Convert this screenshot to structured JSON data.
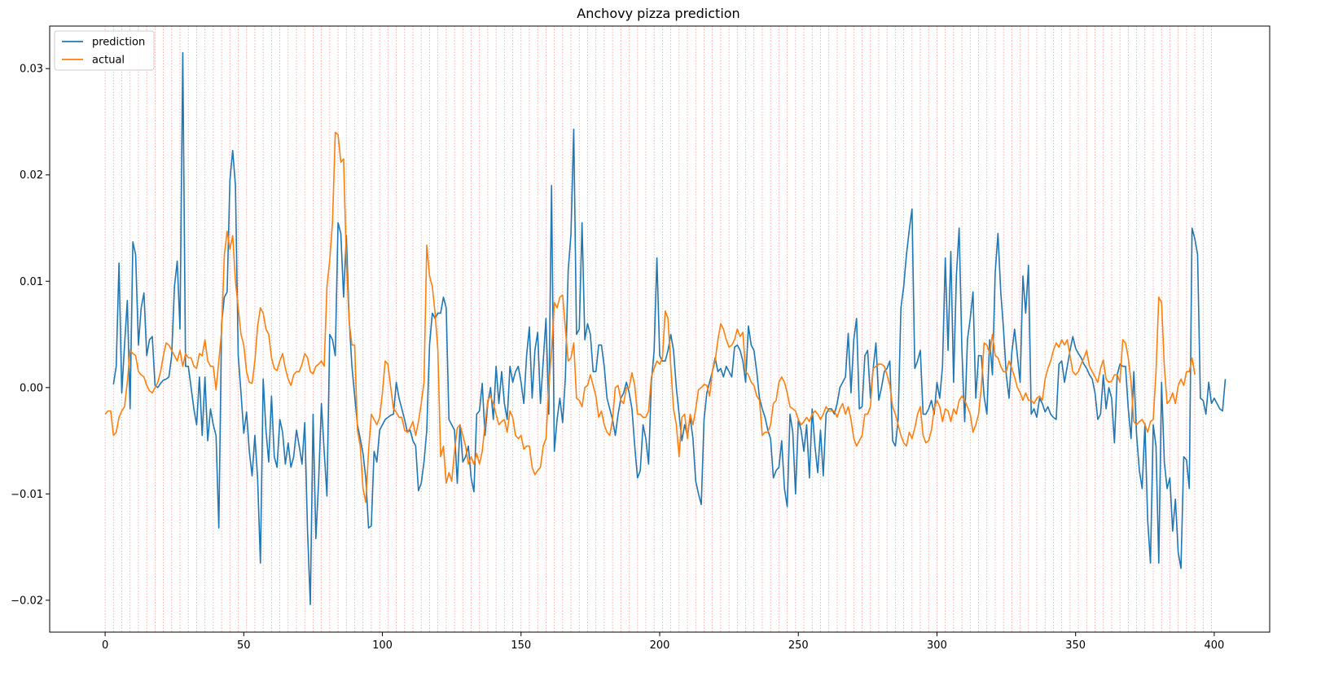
{
  "chart_data": {
    "type": "line",
    "title": "Anchovy pizza prediction",
    "xlabel": "",
    "ylabel": "",
    "xlim": [
      -20,
      420
    ],
    "ylim": [
      -0.023,
      0.034
    ],
    "x_ticks": [
      0,
      50,
      100,
      150,
      200,
      250,
      300,
      350,
      400
    ],
    "y_ticks": [
      -0.02,
      -0.01,
      0.0,
      0.01,
      0.02,
      0.03
    ],
    "y_tick_labels": [
      "−0.02",
      "−0.01",
      "0.00",
      "0.01",
      "0.02",
      "0.03"
    ],
    "grid": false,
    "legend_position": "upper-left",
    "vertical_markers": {
      "start": 0,
      "end": 399,
      "step": 3,
      "color": "#ff9999",
      "style": "dotted"
    },
    "series": [
      {
        "name": "prediction",
        "color": "#1f77b4",
        "x_start": 3,
        "step": 1,
        "values": [
          0.0003,
          0.002,
          0.0117,
          -0.0005,
          0.004,
          0.0082,
          -0.002,
          0.0137,
          0.0125,
          0.004,
          0.0075,
          0.0089,
          0.003,
          0.0045,
          0.0048,
          0.0002,
          0.0,
          0.0004,
          0.0007,
          0.0008,
          0.001,
          0.003,
          0.0095,
          0.0119,
          0.0055,
          0.0315,
          0.002,
          0.002,
          0.0,
          -0.002,
          -0.0035,
          0.001,
          -0.0045,
          0.001,
          -0.005,
          -0.002,
          -0.0035,
          -0.0045,
          -0.0132,
          0.006,
          0.0085,
          0.009,
          0.0195,
          0.0223,
          0.019,
          0.003,
          -0.0005,
          -0.0043,
          -0.0023,
          -0.006,
          -0.0083,
          -0.0045,
          -0.0086,
          -0.0165,
          0.0008,
          -0.004,
          -0.007,
          -0.0008,
          -0.0065,
          -0.0075,
          -0.003,
          -0.0042,
          -0.0072,
          -0.0052,
          -0.0075,
          -0.0065,
          -0.004,
          -0.0055,
          -0.0072,
          -0.0033,
          -0.0135,
          -0.0204,
          -0.0025,
          -0.0142,
          -0.0088,
          -0.0015,
          -0.006,
          -0.0102,
          0.005,
          0.0045,
          0.003,
          0.0155,
          0.0145,
          0.0085,
          0.0143,
          0.0065,
          0.002,
          -0.0008,
          -0.0035,
          -0.0048,
          -0.0062,
          -0.0085,
          -0.0132,
          -0.013,
          -0.006,
          -0.007,
          -0.004,
          -0.0035,
          -0.003,
          -0.0028,
          -0.0026,
          -0.0025,
          0.0005,
          -0.001,
          -0.002,
          -0.003,
          -0.0042,
          -0.004,
          -0.005,
          -0.0055,
          -0.0097,
          -0.009,
          -0.007,
          -0.004,
          0.004,
          0.007,
          0.0065,
          0.007,
          0.007,
          0.0085,
          0.0075,
          -0.003,
          -0.0035,
          -0.004,
          -0.009,
          -0.0035,
          -0.007,
          -0.0065,
          -0.0055,
          -0.0085,
          -0.0098,
          -0.0025,
          -0.0022,
          0.0004,
          -0.0045,
          -0.0015,
          0.0,
          -0.003,
          0.002,
          -0.0015,
          0.0015,
          -0.0015,
          -0.003,
          0.002,
          0.0005,
          0.0015,
          0.002,
          0.0005,
          -0.0015,
          0.003,
          0.0057,
          -0.001,
          0.0035,
          0.0052,
          -0.0015,
          0.0025,
          0.0065,
          -0.0025,
          0.019,
          -0.006,
          -0.003,
          -0.001,
          -0.0033,
          0.001,
          0.011,
          0.0144,
          0.0243,
          0.005,
          0.0055,
          0.0155,
          0.0045,
          0.006,
          0.005,
          0.0015,
          0.0015,
          0.004,
          0.004,
          0.002,
          -0.001,
          -0.002,
          -0.003,
          -0.0045,
          -0.0025,
          -0.001,
          -0.0005,
          0.0005,
          -0.0005,
          -0.002,
          -0.0055,
          -0.0085,
          -0.0078,
          -0.0035,
          -0.0048,
          -0.0072,
          0.0005,
          0.0035,
          0.0122,
          0.003,
          0.0025,
          0.0025,
          0.0035,
          0.005,
          0.0035,
          0.0,
          -0.0025,
          -0.005,
          -0.0035,
          -0.0045,
          -0.0028,
          -0.0048,
          -0.0088,
          -0.01,
          -0.011,
          -0.003,
          -0.0005,
          0.0005,
          0.0015,
          0.0028,
          0.0015,
          0.0018,
          0.001,
          0.002,
          0.0015,
          0.001,
          0.0038,
          0.004,
          0.0035,
          0.0025,
          0.0005,
          0.0058,
          0.004,
          0.0035,
          0.0015,
          -0.001,
          -0.002,
          -0.0028,
          -0.004,
          -0.0048,
          -0.0085,
          -0.0078,
          -0.0075,
          -0.005,
          -0.0095,
          -0.0112,
          -0.0025,
          -0.0042,
          -0.01,
          -0.003,
          -0.004,
          -0.006,
          -0.0035,
          -0.0085,
          -0.002,
          -0.0055,
          -0.008,
          -0.004,
          -0.0083,
          -0.0025,
          -0.002,
          -0.002,
          -0.0025,
          -0.0015,
          0.0,
          0.0005,
          0.001,
          0.0051,
          -0.0005,
          0.0045,
          0.0065,
          -0.002,
          -0.0018,
          0.003,
          0.0035,
          -0.001,
          0.0018,
          0.0042,
          -0.0012,
          0.0,
          0.0015,
          0.0018,
          0.0025,
          -0.005,
          -0.0055,
          -0.003,
          0.0075,
          0.0095,
          0.0125,
          0.0148,
          0.0168,
          0.0018,
          0.0025,
          0.0035,
          -0.0025,
          -0.0025,
          -0.002,
          -0.0012,
          -0.0025,
          0.0005,
          -0.001,
          0.002,
          0.0122,
          0.0035,
          0.0128,
          0.0005,
          0.0105,
          0.015,
          0.0035,
          -0.0032,
          0.0045,
          0.0065,
          0.009,
          -0.001,
          0.003,
          0.003,
          -0.0008,
          -0.0025,
          0.0045,
          0.0012,
          0.0108,
          0.0145,
          0.009,
          0.0055,
          0.0012,
          -0.001,
          0.0033,
          0.0055,
          0.003,
          0.0005,
          0.0105,
          0.007,
          0.0115,
          -0.0025,
          -0.002,
          -0.0028,
          -0.001,
          -0.0015,
          -0.0023,
          -0.0018,
          -0.0025,
          -0.0028,
          -0.003,
          0.0022,
          0.0025,
          0.0005,
          0.002,
          0.0035,
          0.0048,
          0.0037,
          0.0032,
          0.0028,
          0.0022,
          0.0018,
          0.0012,
          0.0008,
          -0.0005,
          -0.003,
          -0.0025,
          0.0012,
          -0.002,
          0.0,
          -0.001,
          -0.0052,
          0.0012,
          0.0022,
          0.002,
          0.002,
          -0.002,
          -0.0048,
          0.0015,
          -0.0045,
          -0.0078,
          -0.0095,
          -0.0034,
          -0.0125,
          -0.0165,
          -0.0035,
          -0.0055,
          -0.0165,
          0.0005,
          -0.007,
          -0.0095,
          -0.0085,
          -0.0135,
          -0.0105,
          -0.0155,
          -0.017,
          -0.0065,
          -0.0068,
          -0.0095,
          0.015,
          0.014,
          0.0125,
          -0.001,
          -0.0012,
          -0.0025,
          0.0005,
          -0.0015,
          -0.001,
          -0.0015,
          -0.002,
          -0.0022,
          0.0008
        ]
      },
      {
        "name": "actual",
        "color": "#ff7f0e",
        "x_start": 0,
        "step": 1,
        "values": [
          -0.0025,
          -0.0022,
          -0.0022,
          -0.0045,
          -0.0042,
          -0.0028,
          -0.0022,
          -0.0018,
          0.0005,
          0.0035,
          0.0032,
          0.003,
          0.0015,
          0.0012,
          0.001,
          0.0002,
          -0.0003,
          -0.0005,
          0.0,
          0.0005,
          0.0015,
          0.003,
          0.0042,
          0.004,
          0.0035,
          0.003,
          0.0025,
          0.0035,
          0.002,
          0.0032,
          0.0028,
          0.0028,
          0.002,
          0.0018,
          0.0032,
          0.003,
          0.0045,
          0.0025,
          0.002,
          0.002,
          -0.0002,
          0.0025,
          0.0053,
          0.0125,
          0.0147,
          0.013,
          0.0143,
          0.01,
          0.0075,
          0.005,
          0.004,
          0.0015,
          0.0005,
          0.0004,
          0.0025,
          0.0058,
          0.0075,
          0.007,
          0.0055,
          0.005,
          0.0028,
          0.0018,
          0.0016,
          0.0025,
          0.0032,
          0.0018,
          0.0008,
          0.0002,
          0.0012,
          0.0015,
          0.0015,
          0.0022,
          0.0032,
          0.0028,
          0.0015,
          0.0013,
          0.002,
          0.0022,
          0.0025,
          0.002,
          0.0095,
          0.012,
          0.0155,
          0.024,
          0.0238,
          0.0212,
          0.0215,
          0.012,
          0.0062,
          0.004,
          0.004,
          -0.004,
          -0.0055,
          -0.0095,
          -0.0108,
          -0.006,
          -0.0025,
          -0.003,
          -0.0035,
          -0.0028,
          -0.0005,
          0.0025,
          0.0022,
          0.0,
          -0.002,
          -0.0023,
          -0.0028,
          -0.0028,
          -0.004,
          -0.0042,
          -0.0038,
          -0.0032,
          -0.0045,
          -0.0032,
          -0.0015,
          0.0005,
          0.0134,
          0.0105,
          0.0095,
          0.007,
          0.0035,
          -0.0065,
          -0.0055,
          -0.009,
          -0.008,
          -0.0088,
          -0.006,
          -0.0038,
          -0.0035,
          -0.0045,
          -0.0055,
          -0.0072,
          -0.0065,
          -0.0072,
          -0.0062,
          -0.0072,
          -0.006,
          -0.0035,
          -0.0012,
          -0.0008,
          -0.0015,
          -0.0025,
          -0.0035,
          -0.0032,
          -0.003,
          -0.0042,
          -0.0022,
          -0.0028,
          -0.0045,
          -0.0048,
          -0.0045,
          -0.0058,
          -0.0055,
          -0.0055,
          -0.0075,
          -0.0082,
          -0.0078,
          -0.0075,
          -0.0055,
          -0.0048,
          0.0,
          0.0035,
          0.008,
          0.0075,
          0.0085,
          0.0087,
          0.0055,
          0.0025,
          0.0028,
          0.0042,
          -0.001,
          -0.0012,
          -0.0018,
          0.0,
          0.0002,
          0.0012,
          0.0002,
          -0.0008,
          -0.0028,
          -0.0022,
          -0.0035,
          -0.0042,
          -0.0045,
          -0.003,
          0.0,
          0.0002,
          -0.0012,
          -0.0015,
          0.0,
          0.0,
          0.0014,
          0.0002,
          -0.0025,
          -0.0025,
          -0.0028,
          -0.0028,
          -0.0022,
          0.001,
          0.0018,
          0.0025,
          0.0022,
          0.0028,
          0.0072,
          0.0065,
          0.002,
          -0.002,
          -0.0035,
          -0.0065,
          -0.0028,
          -0.0025,
          -0.0048,
          -0.0025,
          -0.0035,
          -0.002,
          -0.0002,
          0.0,
          0.0003,
          0.0002,
          -0.0008,
          0.0015,
          0.0025,
          0.0045,
          0.006,
          0.0055,
          0.0045,
          0.0038,
          0.004,
          0.0045,
          0.0055,
          0.0048,
          0.0052,
          0.0015,
          0.0012,
          0.0005,
          0.0002,
          -0.0008,
          -0.0012,
          -0.0045,
          -0.0042,
          -0.0042,
          -0.0035,
          -0.0015,
          -0.0012,
          0.0005,
          0.001,
          0.0005,
          -0.0005,
          -0.0018,
          -0.002,
          -0.0022,
          -0.003,
          -0.0035,
          -0.0032,
          -0.0028,
          -0.0032,
          -0.0025,
          -0.0022,
          -0.0025,
          -0.003,
          -0.0025,
          -0.0018,
          -0.0022,
          -0.0022,
          -0.0022,
          -0.0028,
          -0.002,
          -0.0015,
          -0.0025,
          -0.0018,
          -0.003,
          -0.0048,
          -0.0055,
          -0.005,
          -0.0045,
          -0.0025,
          -0.0025,
          -0.0018,
          0.0018,
          0.002,
          0.0022,
          0.0022,
          0.002,
          0.0012,
          0.0002,
          -0.0018,
          -0.0025,
          -0.0035,
          -0.0045,
          -0.0052,
          -0.0055,
          -0.0042,
          -0.0048,
          -0.0038,
          -0.0025,
          -0.0018,
          -0.0045,
          -0.0052,
          -0.005,
          -0.004,
          -0.002,
          -0.0012,
          -0.0018,
          -0.0032,
          -0.002,
          -0.0022,
          -0.0032,
          -0.002,
          -0.0025,
          -0.0012,
          -0.0008,
          -0.0012,
          -0.0018,
          -0.0025,
          -0.0042,
          -0.0035,
          -0.0025,
          0.0,
          0.0042,
          0.004,
          0.0032,
          0.005,
          0.003,
          0.0028,
          0.002,
          0.0015,
          0.0015,
          0.0025,
          0.0018,
          0.001,
          0.0,
          -0.0005,
          -0.0012,
          -0.0005,
          -0.0012,
          -0.0012,
          -0.0015,
          -0.001,
          -0.0008,
          -0.0012,
          0.0008,
          0.0018,
          0.0025,
          0.0035,
          0.0042,
          0.0038,
          0.0045,
          0.004,
          0.0045,
          0.003,
          0.0015,
          0.0012,
          0.0015,
          0.0022,
          0.0028,
          0.0035,
          0.002,
          0.0015,
          0.001,
          0.0005,
          0.0018,
          0.0026,
          0.0008,
          0.0005,
          0.0006,
          0.0012,
          0.0012,
          0.0005,
          0.0045,
          0.0042,
          0.0028,
          0.0005,
          -0.0032,
          -0.0035,
          -0.0032,
          -0.003,
          -0.0035,
          -0.0042,
          -0.0032,
          -0.003,
          0.0015,
          0.0085,
          0.008,
          0.002,
          -0.0015,
          -0.0012,
          -0.0005,
          -0.0015,
          0.0002,
          0.0008,
          0.0002,
          0.0015,
          0.0015,
          0.0028,
          0.0012
        ]
      }
    ]
  }
}
